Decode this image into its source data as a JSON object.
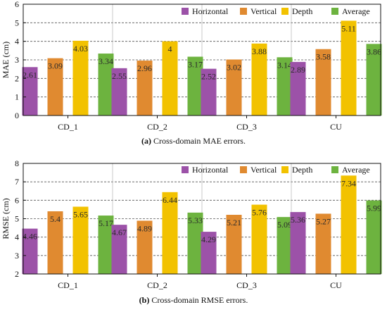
{
  "colors": {
    "horizontal": "#9c52a8",
    "vertical": "#e08a30",
    "depth": "#f2c200",
    "average": "#6db33f"
  },
  "chart_data": [
    {
      "type": "bar",
      "ylabel": "MAE (cm)",
      "ylim": [
        0,
        6
      ],
      "yticks": [
        0,
        1,
        2,
        3,
        4,
        5,
        6
      ],
      "grid": "dashed-horizontal",
      "legend": "top-right",
      "categories": [
        "CD_1",
        "CD_2",
        "CD_3",
        "CU"
      ],
      "series": [
        {
          "name": "Horizontal",
          "key": "horizontal",
          "values": [
            2.61,
            2.55,
            2.52,
            2.89
          ]
        },
        {
          "name": "Vertical",
          "key": "vertical",
          "values": [
            3.09,
            2.96,
            3.02,
            3.58
          ]
        },
        {
          "name": "Depth",
          "key": "depth",
          "values": [
            4.03,
            4,
            3.88,
            5.11
          ]
        },
        {
          "name": "Average",
          "key": "average",
          "values": [
            3.34,
            3.17,
            3.14,
            3.86
          ]
        }
      ],
      "caption_label": "(a)",
      "caption_text": " Cross-domain MAE errors."
    },
    {
      "type": "bar",
      "ylabel": "RMSE (cm)",
      "ylim": [
        2,
        8
      ],
      "yticks": [
        2,
        3,
        4,
        5,
        6,
        7,
        8
      ],
      "grid": "dashed-horizontal",
      "legend": "top-right",
      "categories": [
        "CD_1",
        "CD_2",
        "CD_3",
        "CU"
      ],
      "series": [
        {
          "name": "Horizontal",
          "key": "horizontal",
          "values": [
            4.46,
            4.67,
            4.29,
            5.36
          ]
        },
        {
          "name": "Vertical",
          "key": "vertical",
          "values": [
            5.4,
            4.89,
            5.21,
            5.27
          ]
        },
        {
          "name": "Depth",
          "key": "depth",
          "values": [
            5.65,
            6.44,
            5.76,
            7.34
          ]
        },
        {
          "name": "Average",
          "key": "average",
          "values": [
            5.17,
            5.33,
            5.09,
            5.99
          ]
        }
      ],
      "caption_label": "(b)",
      "caption_text": " Cross-domain RMSE errors."
    }
  ]
}
